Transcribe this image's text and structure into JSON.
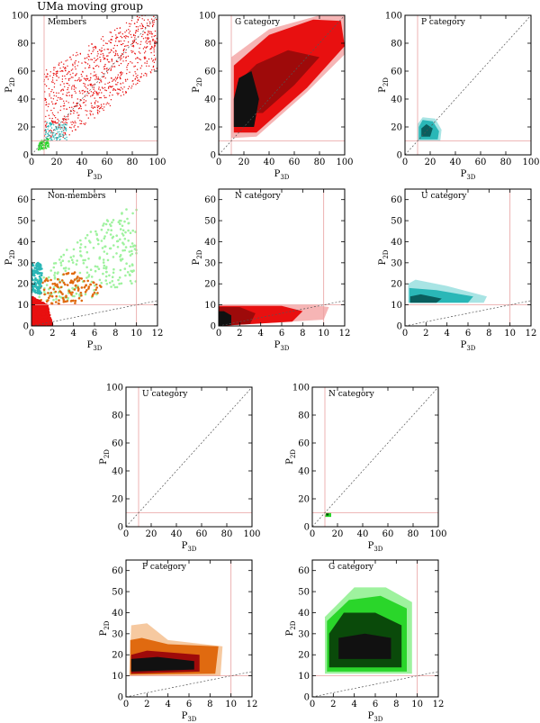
{
  "main_title": "UMa moving group",
  "colors": {
    "ref_line": "#e8a0a0",
    "diag_line": "#555555",
    "red": "#e81010",
    "dark_red": "#9e0a0a",
    "light_red": "#f6b5b5",
    "teal": "#2ab7b7",
    "light_teal": "#a8e4e4",
    "dark_teal": "#0a5e5e",
    "orange": "#e06a10",
    "light_orange": "#f6c9a0",
    "green": "#2ad62a",
    "light_green": "#9ef29e",
    "dark_green": "#0a4a0a",
    "black": "#111111"
  },
  "chart_data": [
    {
      "id": "members",
      "type": "scatter",
      "panel_label": "Members",
      "xlabel": "P3D",
      "ylabel": "P2D",
      "xlim": [
        0,
        100
      ],
      "ylim": [
        0,
        100
      ],
      "xticks": [
        0,
        20,
        40,
        60,
        80,
        100
      ],
      "yticks": [
        0,
        20,
        40,
        60,
        80,
        100
      ],
      "ref_x": 10,
      "ref_y": 10,
      "diagonal": true,
      "series": [
        {
          "color": "red",
          "region": [
            [
              10,
              12
            ],
            [
              30,
              12
            ],
            [
              100,
              62
            ],
            [
              100,
              100
            ],
            [
              85,
              100
            ],
            [
              10,
              60
            ]
          ]
        },
        {
          "color": "teal",
          "region": [
            [
              10,
              10
            ],
            [
              28,
              10
            ],
            [
              28,
              22
            ],
            [
              12,
              24
            ]
          ]
        },
        {
          "color": "green",
          "region": [
            [
              5,
              3
            ],
            [
              14,
              5
            ],
            [
              14,
              12
            ],
            [
              6,
              10
            ]
          ]
        }
      ]
    },
    {
      "id": "g-category-top",
      "type": "area",
      "panel_label": "G category",
      "xlabel": "P3D",
      "ylabel": "P2D",
      "xlim": [
        0,
        100
      ],
      "ylim": [
        0,
        100
      ],
      "xticks": [
        0,
        20,
        40,
        60,
        80,
        100
      ],
      "yticks": [
        0,
        20,
        40,
        60,
        80,
        100
      ],
      "ref_x": 10,
      "ref_y": 10,
      "diagonal": true,
      "levels": [
        {
          "color": "light_red",
          "polygon": [
            [
              10,
              12
            ],
            [
              30,
              13
            ],
            [
              70,
              45
            ],
            [
              100,
              72
            ],
            [
              100,
              100
            ],
            [
              80,
              100
            ],
            [
              40,
              90
            ],
            [
              10,
              70
            ]
          ]
        },
        {
          "color": "red",
          "polygon": [
            [
              12,
              16
            ],
            [
              30,
              16
            ],
            [
              70,
              48
            ],
            [
              100,
              78
            ],
            [
              97,
              96
            ],
            [
              75,
              97
            ],
            [
              40,
              86
            ],
            [
              12,
              64
            ]
          ]
        },
        {
          "color": "dark_red",
          "polygon": [
            [
              14,
              30
            ],
            [
              35,
              30
            ],
            [
              60,
              50
            ],
            [
              80,
              70
            ],
            [
              55,
              75
            ],
            [
              30,
              65
            ],
            [
              15,
              52
            ]
          ]
        },
        {
          "color": "black",
          "polygon": [
            [
              12,
              20
            ],
            [
              28,
              20
            ],
            [
              32,
              40
            ],
            [
              26,
              60
            ],
            [
              16,
              55
            ],
            [
              12,
              40
            ]
          ]
        }
      ]
    },
    {
      "id": "p-category-top",
      "type": "area",
      "panel_label": "P category",
      "xlabel": "P3D",
      "ylabel": "P2D",
      "xlim": [
        0,
        100
      ],
      "ylim": [
        0,
        100
      ],
      "xticks": [
        0,
        20,
        40,
        60,
        80,
        100
      ],
      "yticks": [
        0,
        20,
        40,
        60,
        80,
        100
      ],
      "ref_x": 10,
      "ref_y": 10,
      "diagonal": true,
      "levels": [
        {
          "color": "light_teal",
          "polygon": [
            [
              10,
              10
            ],
            [
              28,
              10
            ],
            [
              29,
              18
            ],
            [
              24,
              26
            ],
            [
              14,
              27
            ],
            [
              10,
              22
            ]
          ]
        },
        {
          "color": "teal",
          "polygon": [
            [
              11,
              11
            ],
            [
              26,
              11
            ],
            [
              27,
              17
            ],
            [
              22,
              24
            ],
            [
              14,
              25
            ],
            [
              11,
              20
            ]
          ]
        },
        {
          "color": "dark_teal",
          "polygon": [
            [
              13,
              13
            ],
            [
              20,
              13
            ],
            [
              22,
              19
            ],
            [
              17,
              22
            ],
            [
              13,
              19
            ]
          ]
        }
      ]
    },
    {
      "id": "non-members",
      "type": "scatter",
      "panel_label": "Non-members",
      "xlabel": "P3D",
      "ylabel": "P2D",
      "xlim": [
        0,
        12
      ],
      "ylim": [
        0,
        65
      ],
      "xticks": [
        0,
        2,
        4,
        6,
        8,
        10,
        12
      ],
      "yticks": [
        0,
        10,
        20,
        30,
        40,
        50,
        60
      ],
      "ref_x": 10,
      "ref_y": 10,
      "diagonal": true,
      "series": [
        {
          "color": "light_green",
          "region": [
            [
              0.5,
              12
            ],
            [
              5,
              12
            ],
            [
              10,
              20
            ],
            [
              10,
              58
            ],
            [
              6,
              48
            ],
            [
              2,
              30
            ],
            [
              0.5,
              22
            ]
          ]
        },
        {
          "color": "orange",
          "region": [
            [
              0.5,
              10
            ],
            [
              5,
              11
            ],
            [
              7,
              18
            ],
            [
              4,
              26
            ],
            [
              1,
              22
            ]
          ]
        },
        {
          "color": "teal",
          "region": [
            [
              0,
              15
            ],
            [
              1,
              15
            ],
            [
              1,
              30
            ],
            [
              0,
              30
            ]
          ]
        },
        {
          "color": "red",
          "region": [
            [
              0,
              0
            ],
            [
              2,
              0
            ],
            [
              1.5,
              10
            ],
            [
              0,
              14
            ]
          ]
        }
      ]
    },
    {
      "id": "n-category-top",
      "type": "area",
      "panel_label": "N category",
      "xlabel": "P3D",
      "ylabel": "P2D",
      "xlim": [
        0,
        12
      ],
      "ylim": [
        0,
        65
      ],
      "xticks": [
        0,
        2,
        4,
        6,
        8,
        10,
        12
      ],
      "yticks": [
        0,
        10,
        20,
        30,
        40,
        50,
        60
      ],
      "ref_x": 10,
      "ref_y": 10,
      "diagonal": true,
      "levels": [
        {
          "color": "light_red",
          "polygon": [
            [
              0,
              0
            ],
            [
              10,
              3
            ],
            [
              10.5,
              9
            ],
            [
              9,
              10
            ],
            [
              0,
              10
            ]
          ]
        },
        {
          "color": "red",
          "polygon": [
            [
              0,
              0
            ],
            [
              7,
              2
            ],
            [
              8,
              7
            ],
            [
              6,
              9.5
            ],
            [
              0,
              9.5
            ]
          ]
        },
        {
          "color": "dark_red",
          "polygon": [
            [
              0,
              0
            ],
            [
              3,
              1
            ],
            [
              3.5,
              6
            ],
            [
              2,
              9
            ],
            [
              0,
              9
            ]
          ]
        },
        {
          "color": "black",
          "polygon": [
            [
              0,
              0
            ],
            [
              1.2,
              0.5
            ],
            [
              1.2,
              5
            ],
            [
              0.5,
              7
            ],
            [
              0,
              7
            ]
          ]
        }
      ]
    },
    {
      "id": "u-category-top",
      "type": "area",
      "panel_label": "U category",
      "xlabel": "P3D",
      "ylabel": "P2D",
      "xlim": [
        0,
        12
      ],
      "ylim": [
        0,
        65
      ],
      "xticks": [
        0,
        2,
        4,
        6,
        8,
        10,
        12
      ],
      "yticks": [
        0,
        10,
        20,
        30,
        40,
        50,
        60
      ],
      "ref_x": 10,
      "ref_y": 10,
      "diagonal": true,
      "levels": [
        {
          "color": "light_teal",
          "polygon": [
            [
              0.3,
              11
            ],
            [
              7.5,
              11
            ],
            [
              7.8,
              14
            ],
            [
              4,
              19
            ],
            [
              1,
              22
            ],
            [
              0.3,
              20
            ]
          ]
        },
        {
          "color": "teal",
          "polygon": [
            [
              0.4,
              11
            ],
            [
              6,
              11
            ],
            [
              6.5,
              14
            ],
            [
              3,
              17
            ],
            [
              0.4,
              18
            ]
          ]
        },
        {
          "color": "dark_teal",
          "polygon": [
            [
              0.5,
              11
            ],
            [
              3,
              11
            ],
            [
              3.5,
              13
            ],
            [
              1.5,
              15
            ],
            [
              0.5,
              14
            ]
          ]
        }
      ]
    },
    {
      "id": "u-category-bottom",
      "type": "area",
      "panel_label": "U category",
      "xlabel": "P3D",
      "ylabel": "P2D",
      "xlim": [
        0,
        100
      ],
      "ylim": [
        0,
        100
      ],
      "xticks": [
        0,
        20,
        40,
        60,
        80,
        100
      ],
      "yticks": [
        0,
        20,
        40,
        60,
        80,
        100
      ],
      "ref_x": 10,
      "ref_y": 10,
      "diagonal": true,
      "levels": []
    },
    {
      "id": "n-category-bottom",
      "type": "area",
      "panel_label": "N category",
      "xlabel": "P3D",
      "ylabel": "P2D",
      "xlim": [
        0,
        100
      ],
      "ylim": [
        0,
        100
      ],
      "xticks": [
        0,
        20,
        40,
        60,
        80,
        100
      ],
      "yticks": [
        0,
        20,
        40,
        60,
        80,
        100
      ],
      "ref_x": 10,
      "ref_y": 10,
      "diagonal": true,
      "levels": [
        {
          "color": "green",
          "polygon": [
            [
              10,
              7
            ],
            [
              15,
              7
            ],
            [
              15,
              10
            ],
            [
              11,
              10
            ]
          ]
        },
        {
          "color": "dark_green",
          "polygon": [
            [
              11,
              8
            ],
            [
              13,
              8
            ],
            [
              13,
              9.5
            ],
            [
              11,
              9.5
            ]
          ]
        }
      ]
    },
    {
      "id": "p-category-bottom",
      "type": "area",
      "panel_label": "P category",
      "xlabel": "P3D",
      "ylabel": "P2D",
      "xlim": [
        0,
        12
      ],
      "ylim": [
        0,
        65
      ],
      "xticks": [
        0,
        2,
        4,
        6,
        8,
        10,
        12
      ],
      "yticks": [
        0,
        10,
        20,
        30,
        40,
        50,
        60
      ],
      "ref_x": 10,
      "ref_y": 10,
      "diagonal": true,
      "levels": [
        {
          "color": "light_orange",
          "polygon": [
            [
              0.3,
              10
            ],
            [
              9,
              10
            ],
            [
              9.2,
              24
            ],
            [
              4,
              27
            ],
            [
              2,
              35
            ],
            [
              0.5,
              34
            ]
          ]
        },
        {
          "color": "orange",
          "polygon": [
            [
              0.4,
              10.5
            ],
            [
              8.5,
              11
            ],
            [
              8.8,
              24
            ],
            [
              4,
              25
            ],
            [
              1.5,
              28
            ],
            [
              0.4,
              27
            ]
          ]
        },
        {
          "color": "dark_red",
          "polygon": [
            [
              0.5,
              11
            ],
            [
              7,
              12
            ],
            [
              7,
              20
            ],
            [
              2,
              22
            ],
            [
              0.5,
              20
            ]
          ]
        },
        {
          "color": "black",
          "polygon": [
            [
              0.5,
              12
            ],
            [
              6.5,
              13
            ],
            [
              6.5,
              17
            ],
            [
              3,
              19
            ],
            [
              0.5,
              18
            ]
          ]
        }
      ]
    },
    {
      "id": "g-category-bottom",
      "type": "area",
      "panel_label": "G category",
      "xlabel": "P3D",
      "ylabel": "P2D",
      "xlim": [
        0,
        12
      ],
      "ylim": [
        0,
        65
      ],
      "xticks": [
        0,
        2,
        4,
        6,
        8,
        10,
        12
      ],
      "yticks": [
        0,
        10,
        20,
        30,
        40,
        50,
        60
      ],
      "ref_x": 10,
      "ref_y": 10,
      "diagonal": true,
      "levels": [
        {
          "color": "light_green",
          "polygon": [
            [
              1.2,
              11
            ],
            [
              9.5,
              11
            ],
            [
              9.5,
              45
            ],
            [
              7,
              52
            ],
            [
              4,
              52
            ],
            [
              1.2,
              38
            ]
          ]
        },
        {
          "color": "green",
          "polygon": [
            [
              1.4,
              12
            ],
            [
              9,
              12
            ],
            [
              9,
              42
            ],
            [
              6.5,
              48
            ],
            [
              3.5,
              46
            ],
            [
              1.4,
              36
            ]
          ]
        },
        {
          "color": "dark_green",
          "polygon": [
            [
              1.6,
              14
            ],
            [
              8.5,
              14
            ],
            [
              8.5,
              34
            ],
            [
              6,
              40
            ],
            [
              3,
              40
            ],
            [
              1.6,
              30
            ]
          ]
        },
        {
          "color": "black",
          "polygon": [
            [
              2.5,
              18
            ],
            [
              7.5,
              18
            ],
            [
              7.5,
              28
            ],
            [
              5,
              30
            ],
            [
              2.5,
              28
            ]
          ]
        }
      ]
    }
  ]
}
